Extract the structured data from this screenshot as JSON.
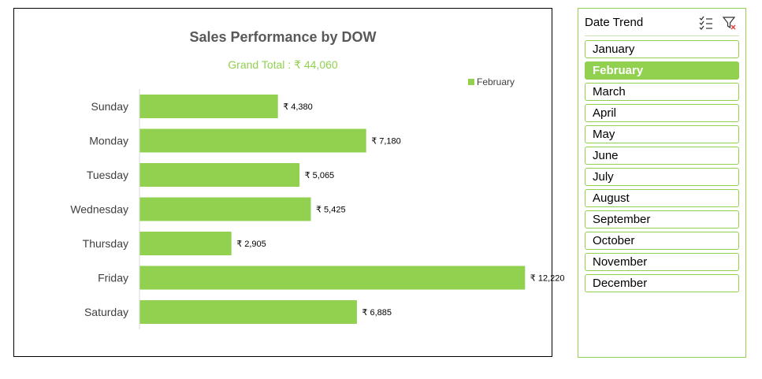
{
  "chart_data": {
    "type": "bar",
    "orientation": "horizontal",
    "title": "Sales Performance by DOW",
    "subtitle": "Grand Total : ₹ 44,060",
    "categories": [
      "Sunday",
      "Monday",
      "Tuesday",
      "Wednesday",
      "Thursday",
      "Friday",
      "Saturday"
    ],
    "series": [
      {
        "name": "February",
        "values": [
          4380,
          7180,
          5065,
          5425,
          2905,
          12220,
          6885
        ],
        "color": "#92d050"
      }
    ],
    "data_labels": [
      "₹ 4,380",
      "₹ 7,180",
      "₹ 5,065",
      "₹ 5,425",
      "₹ 2,905",
      "₹ 12,220",
      "₹ 6,885"
    ],
    "xlim": [
      0,
      14000
    ],
    "grid": false,
    "legend_position": "top-right"
  },
  "slicer": {
    "title": "Date Trend",
    "icons": [
      "multi-select-icon",
      "clear-filter-icon"
    ],
    "items": [
      {
        "label": "January",
        "selected": false
      },
      {
        "label": "February",
        "selected": true
      },
      {
        "label": "March",
        "selected": false
      },
      {
        "label": "April",
        "selected": false
      },
      {
        "label": "May",
        "selected": false
      },
      {
        "label": "June",
        "selected": false
      },
      {
        "label": "July",
        "selected": false
      },
      {
        "label": "August",
        "selected": false
      },
      {
        "label": "September",
        "selected": false
      },
      {
        "label": "October",
        "selected": false
      },
      {
        "label": "November",
        "selected": false
      },
      {
        "label": "December",
        "selected": false
      }
    ]
  }
}
